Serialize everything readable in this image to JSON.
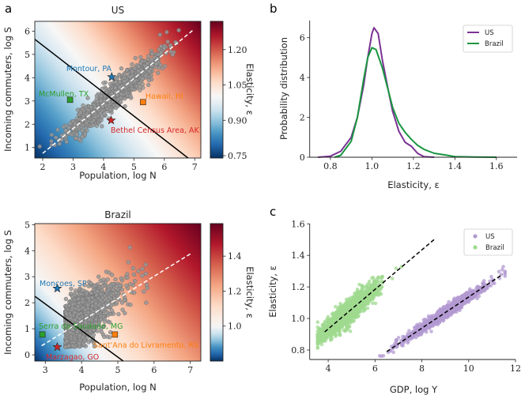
{
  "panel_letters": {
    "a": "a",
    "b": "b",
    "c": "c"
  },
  "chart_data": [
    {
      "id": "a_us",
      "type": "scatter",
      "title": "US",
      "xlabel": "Population, log N",
      "ylabel": "Incoming commuters, log S",
      "xlim": [
        1.74,
        7.2
      ],
      "ylim": [
        0.55,
        6.42
      ],
      "xticks": [
        2,
        3,
        4,
        5,
        6,
        7
      ],
      "yticks": [
        1,
        2,
        3,
        4,
        5,
        6
      ],
      "colorbar": {
        "label": "Elasticity, ε",
        "range": [
          0.74,
          1.32
        ],
        "ticks": [
          "0.75",
          "0.90",
          "1.05",
          "1.20"
        ],
        "colormap": "RdBu_r"
      },
      "background_elasticity_corners": {
        "bottom_left": 0.74,
        "top_right": 1.32
      },
      "lines": [
        {
          "style": "solid",
          "color": "#000000",
          "points": [
            [
              1.74,
              5.65
            ],
            [
              6.78,
              0.55
            ]
          ]
        },
        {
          "style": "dashed",
          "color": "#ffffff",
          "points": [
            [
              2.0,
              0.75
            ],
            [
              6.95,
              6.05
            ]
          ]
        }
      ],
      "points_color": "#999999",
      "highlights": [
        {
          "label": "Montour, PA",
          "marker": "star",
          "color": "#1f77b4",
          "x": 4.27,
          "y": 4.03
        },
        {
          "label": "McMullen, TX",
          "marker": "square",
          "color": "#2ca02c",
          "x": 2.9,
          "y": 3.05
        },
        {
          "label": "Hawaii, HI",
          "marker": "square",
          "color": "#ff7f0e",
          "x": 5.3,
          "y": 2.95
        },
        {
          "label": "Bethel Census Area, AK",
          "marker": "star",
          "color": "#d62728",
          "x": 4.25,
          "y": 2.17
        }
      ]
    },
    {
      "id": "a_brazil",
      "type": "scatter",
      "title": "Brazil",
      "xlabel": "Population, log N",
      "ylabel": "Incoming commuters, log S",
      "xlim": [
        2.71,
        7.29
      ],
      "ylim": [
        -0.24,
        5.04
      ],
      "xticks": [
        3,
        4,
        5,
        6,
        7
      ],
      "yticks": [
        0,
        1,
        2,
        3,
        4,
        5
      ],
      "colorbar": {
        "label": "Elasticity, ε",
        "range": [
          0.8,
          1.586
        ],
        "ticks": [
          "1.0",
          "1.2",
          "1.4"
        ],
        "colormap": "RdBu_r"
      },
      "background_elasticity_corners": {
        "bottom_left": 0.8,
        "top_right": 1.586
      },
      "lines": [
        {
          "style": "solid",
          "color": "#000000",
          "points": [
            [
              2.71,
              2.25
            ],
            [
              5.15,
              -0.24
            ]
          ]
        },
        {
          "style": "dashed",
          "color": "#ffffff",
          "points": [
            [
              2.9,
              0.35
            ],
            [
              7.05,
              3.92
            ]
          ]
        }
      ],
      "points_color": "#999999",
      "highlights": [
        {
          "label": "Moncoes, SP",
          "marker": "star",
          "color": "#1f77b4",
          "x": 3.33,
          "y": 2.55
        },
        {
          "label": "Serra da Saudade, MG",
          "marker": "square",
          "color": "#2ca02c",
          "x": 2.92,
          "y": 0.78
        },
        {
          "label": "Sant'Ana do Livramento, RS",
          "marker": "square",
          "color": "#ff7f0e",
          "x": 4.92,
          "y": 0.78
        },
        {
          "label": "Marzagao, GO",
          "marker": "star",
          "color": "#d62728",
          "x": 3.33,
          "y": 0.3
        }
      ]
    },
    {
      "id": "b",
      "type": "line",
      "xlabel": "Elasticity, ε",
      "ylabel": "Probability distribution",
      "xlim": [
        0.7,
        1.7
      ],
      "ylim": [
        0,
        6.86
      ],
      "xticks": [
        "0.8",
        "1.0",
        "1.2",
        "1.4",
        "1.6"
      ],
      "yticks": [
        "0",
        "2",
        "4",
        "6"
      ],
      "legend": "top-right",
      "series": [
        {
          "name": "US",
          "color": "#7b3294",
          "x": [
            0.74,
            0.8,
            0.85,
            0.9,
            0.93,
            0.96,
            0.98,
            1.0,
            1.01,
            1.03,
            1.05,
            1.08,
            1.1,
            1.13,
            1.16,
            1.19,
            1.22,
            1.25,
            1.3
          ],
          "y": [
            0,
            0.05,
            0.3,
            1.0,
            2.0,
            3.6,
            5.0,
            6.2,
            6.5,
            6.2,
            4.9,
            3.3,
            2.3,
            1.3,
            0.75,
            0.55,
            0.2,
            0.03,
            0
          ]
        },
        {
          "name": "Brazil",
          "color": "#1a9641",
          "x": [
            0.82,
            0.85,
            0.9,
            0.93,
            0.96,
            0.98,
            1.0,
            1.02,
            1.05,
            1.08,
            1.1,
            1.13,
            1.16,
            1.19,
            1.22,
            1.25,
            1.3,
            1.35,
            1.4,
            1.5,
            1.6
          ],
          "y": [
            0,
            0.1,
            0.8,
            2.0,
            3.9,
            5.0,
            5.5,
            5.4,
            4.5,
            3.3,
            2.5,
            1.7,
            1.25,
            0.9,
            0.6,
            0.4,
            0.2,
            0.12,
            0.03,
            0.01,
            0
          ]
        }
      ]
    },
    {
      "id": "c",
      "type": "scatter",
      "xlabel": "GDP, log Y",
      "ylabel": "Elasticity, ε",
      "xlim": [
        3.21,
        12
      ],
      "ylim": [
        0.74,
        1.6
      ],
      "xticks": [
        "4",
        "6",
        "8",
        "10",
        "12"
      ],
      "yticks": [
        "0.8",
        "1.0",
        "1.2",
        "1.4",
        "1.6"
      ],
      "legend": "top-right",
      "series": [
        {
          "name": "US",
          "color": "#b39ad1",
          "fit": [
            [
              6.5,
              0.79
            ],
            [
              11.45,
              1.28
            ]
          ]
        },
        {
          "name": "Brazil",
          "color": "#9fd98f",
          "fit": [
            [
              3.85,
              0.915
            ],
            [
              8.6,
              1.51
            ]
          ]
        }
      ]
    }
  ]
}
